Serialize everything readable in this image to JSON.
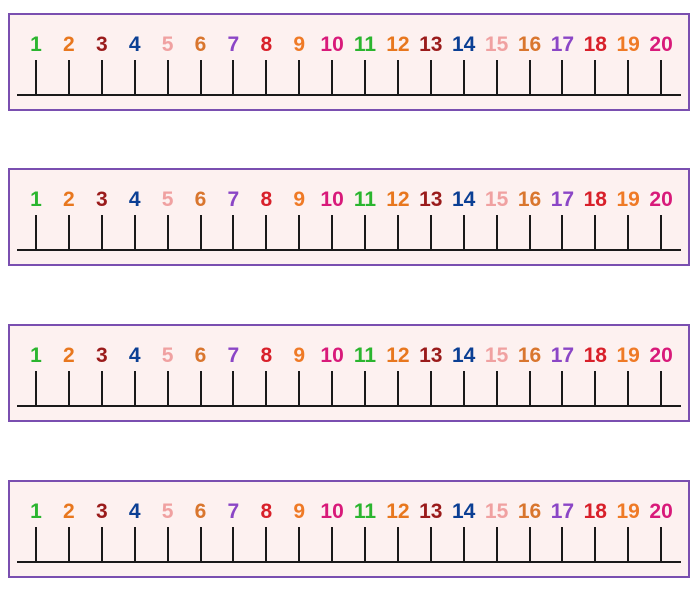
{
  "numbers": [
    "1",
    "2",
    "3",
    "4",
    "5",
    "6",
    "7",
    "8",
    "9",
    "10",
    "11",
    "12",
    "13",
    "14",
    "15",
    "16",
    "17",
    "18",
    "19",
    "20"
  ],
  "colors": [
    "#2bb52f",
    "#e8771e",
    "#9a1b1b",
    "#0b3f94",
    "#f0a1a1",
    "#d9762e",
    "#8b46c6",
    "#d8202a",
    "#ef7a26",
    "#d81a7a",
    "#2bb52f",
    "#e8771e",
    "#9a1b1b",
    "#0b3f94",
    "#f0a1a1",
    "#d9762e",
    "#8b46c6",
    "#d8202a",
    "#ef7a26",
    "#d81a7a"
  ],
  "strip_count": 4,
  "colors_meta": {
    "strip_border": "#7a4fb0",
    "strip_background": "#fdf1f0",
    "line": "#1a1a1a"
  }
}
